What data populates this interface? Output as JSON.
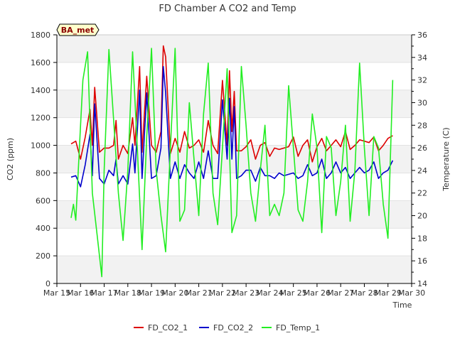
{
  "chart_data": {
    "type": "line",
    "title": "FD Chamber A CO2 and Temp",
    "badge": "BA_met",
    "xlabel": "Time",
    "ylabel_left": "CO2 (ppm)",
    "ylabel_right": "Temperature (C)",
    "ylim_left": [
      0,
      1800
    ],
    "ylim_right": [
      14,
      36
    ],
    "left_ticks": [
      0,
      200,
      400,
      600,
      800,
      1000,
      1200,
      1400,
      1600,
      1800
    ],
    "right_ticks": [
      14,
      16,
      18,
      20,
      22,
      24,
      26,
      28,
      30,
      32,
      34,
      36
    ],
    "x_range": [
      15,
      30
    ],
    "x_ticks": [
      {
        "value": 15,
        "label": "Mar 15"
      },
      {
        "value": 16,
        "label": "Mar 16"
      },
      {
        "value": 17,
        "label": "Mar 17"
      },
      {
        "value": 18,
        "label": "Mar 18"
      },
      {
        "value": 19,
        "label": "Mar 19"
      },
      {
        "value": 20,
        "label": "Mar 20"
      },
      {
        "value": 21,
        "label": "Mar 21"
      },
      {
        "value": 22,
        "label": "Mar 22"
      },
      {
        "value": 23,
        "label": "Mar 23"
      },
      {
        "value": 24,
        "label": "Mar 24"
      },
      {
        "value": 25,
        "label": "Mar 25"
      },
      {
        "value": 26,
        "label": "Mar 26"
      },
      {
        "value": 27,
        "label": "Mar 27"
      },
      {
        "value": 28,
        "label": "Mar 28"
      },
      {
        "value": 29,
        "label": "Mar 29"
      },
      {
        "value": 30,
        "label": "Mar 30"
      }
    ],
    "grid_bands": true,
    "legend_position": "bottom",
    "series": [
      {
        "name": "FD_CO2_1",
        "color": "#dd0000",
        "axis": "left",
        "x": [
          15.6,
          15.8,
          16.0,
          16.2,
          16.4,
          16.5,
          16.6,
          16.8,
          17.0,
          17.2,
          17.4,
          17.5,
          17.6,
          17.8,
          18.0,
          18.2,
          18.3,
          18.5,
          18.6,
          18.8,
          19.0,
          19.2,
          19.4,
          19.5,
          19.6,
          19.8,
          20.0,
          20.2,
          20.4,
          20.6,
          20.8,
          21.0,
          21.2,
          21.4,
          21.6,
          21.8,
          22.0,
          22.2,
          22.3,
          22.4,
          22.5,
          22.6,
          22.8,
          23.0,
          23.2,
          23.4,
          23.6,
          23.8,
          24.0,
          24.2,
          24.4,
          24.6,
          24.8,
          25.0,
          25.2,
          25.4,
          25.6,
          25.8,
          26.0,
          26.2,
          26.4,
          26.6,
          26.8,
          27.0,
          27.2,
          27.4,
          27.6,
          27.8,
          28.0,
          28.2,
          28.4,
          28.6,
          28.8,
          29.0,
          29.2
        ],
        "y": [
          1010,
          1030,
          900,
          1060,
          1260,
          1000,
          1420,
          950,
          980,
          980,
          1000,
          1180,
          900,
          1000,
          940,
          1200,
          1000,
          1570,
          950,
          1500,
          1000,
          950,
          1100,
          1720,
          1640,
          940,
          1050,
          950,
          1100,
          980,
          1000,
          1040,
          950,
          1180,
          1000,
          940,
          1470,
          1000,
          1540,
          1100,
          1390,
          960,
          960,
          990,
          1040,
          900,
          1000,
          1020,
          920,
          980,
          970,
          980,
          990,
          1060,
          920,
          1000,
          1040,
          880,
          990,
          1050,
          960,
          1000,
          1040,
          990,
          1100,
          970,
          1000,
          1040,
          1030,
          1020,
          1060,
          960,
          1000,
          1050,
          1070
        ]
      },
      {
        "name": "FD_CO2_2",
        "color": "#0000cc",
        "axis": "left",
        "x": [
          15.6,
          15.8,
          16.0,
          16.2,
          16.4,
          16.5,
          16.6,
          16.8,
          17.0,
          17.2,
          17.4,
          17.5,
          17.6,
          17.8,
          18.0,
          18.2,
          18.3,
          18.5,
          18.6,
          18.8,
          19.0,
          19.2,
          19.4,
          19.5,
          19.6,
          19.8,
          20.0,
          20.2,
          20.4,
          20.6,
          20.8,
          21.0,
          21.2,
          21.4,
          21.6,
          21.8,
          22.0,
          22.2,
          22.3,
          22.4,
          22.5,
          22.6,
          22.8,
          23.0,
          23.2,
          23.4,
          23.6,
          23.8,
          24.0,
          24.2,
          24.4,
          24.6,
          24.8,
          25.0,
          25.2,
          25.4,
          25.6,
          25.8,
          26.0,
          26.2,
          26.4,
          26.6,
          26.8,
          27.0,
          27.2,
          27.4,
          27.6,
          27.8,
          28.0,
          28.2,
          28.4,
          28.6,
          28.8,
          29.0,
          29.2
        ],
        "y": [
          770,
          780,
          700,
          860,
          1080,
          780,
          1300,
          760,
          720,
          820,
          780,
          900,
          720,
          780,
          720,
          1010,
          800,
          1400,
          760,
          1380,
          760,
          780,
          980,
          1570,
          1380,
          760,
          880,
          760,
          860,
          800,
          760,
          880,
          760,
          960,
          760,
          760,
          1330,
          900,
          1340,
          900,
          1280,
          760,
          780,
          820,
          820,
          740,
          840,
          780,
          780,
          760,
          800,
          780,
          790,
          800,
          760,
          780,
          860,
          780,
          800,
          900,
          760,
          800,
          880,
          800,
          840,
          760,
          800,
          840,
          800,
          820,
          880,
          760,
          800,
          820,
          890
        ]
      },
      {
        "name": "FD_Temp_1",
        "color": "#22ee22",
        "axis": "right",
        "x": [
          15.6,
          15.7,
          15.8,
          16.0,
          16.1,
          16.3,
          16.5,
          16.7,
          16.9,
          17.0,
          17.2,
          17.4,
          17.6,
          17.8,
          18.0,
          18.2,
          18.4,
          18.6,
          18.8,
          19.0,
          19.2,
          19.4,
          19.6,
          19.8,
          20.0,
          20.2,
          20.4,
          20.6,
          20.8,
          21.0,
          21.2,
          21.4,
          21.6,
          21.8,
          22.0,
          22.2,
          22.4,
          22.6,
          22.8,
          23.0,
          23.2,
          23.4,
          23.6,
          23.8,
          24.0,
          24.2,
          24.4,
          24.6,
          24.8,
          25.0,
          25.2,
          25.4,
          25.6,
          25.8,
          26.0,
          26.2,
          26.4,
          26.6,
          26.8,
          27.0,
          27.2,
          27.4,
          27.6,
          27.8,
          28.0,
          28.2,
          28.4,
          28.6,
          28.8,
          29.0,
          29.2
        ],
        "y": [
          19.8,
          21,
          19.6,
          28,
          32,
          34.5,
          22,
          18.3,
          14.6,
          24,
          34.7,
          28.5,
          22,
          17.8,
          24,
          34.5,
          26,
          17,
          27,
          34.8,
          24,
          20,
          16.8,
          26,
          34.8,
          19.5,
          20.5,
          30,
          25,
          20,
          29,
          33.5,
          22,
          19.2,
          26,
          33,
          18.5,
          20,
          33.2,
          28,
          22,
          19.5,
          24,
          28,
          20,
          21,
          20,
          22,
          31.5,
          26,
          20.5,
          19.5,
          23,
          29,
          26,
          18.5,
          27,
          26,
          20,
          23,
          28,
          19.5,
          24,
          33.5,
          26,
          20,
          27,
          26,
          21,
          18,
          32
        ]
      }
    ]
  }
}
